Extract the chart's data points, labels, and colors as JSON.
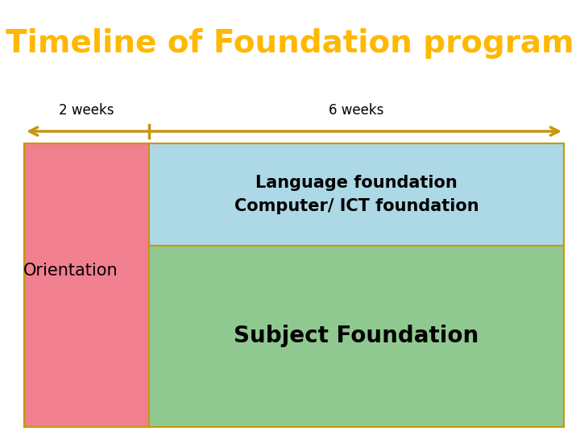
{
  "title": "Timeline of Foundation program",
  "title_color": "#FFB800",
  "title_bg": "#000000",
  "title_fontsize": 28,
  "arrow_color": "#C8960C",
  "label_2weeks": "2 weeks",
  "label_6weeks": "6 weeks",
  "week_label_fontsize": 12,
  "pink_color": "#F08090",
  "blue_color": "#ADD8E6",
  "green_color": "#90C990",
  "border_color": "#C8960C",
  "orientation_text": "Orientation",
  "lang_text1": "Language foundation\nComputer/ ICT foundation",
  "subject_text": "Subject Foundation",
  "content_fontsize": 15,
  "subject_fontsize": 20,
  "orientation_fontsize": 15
}
